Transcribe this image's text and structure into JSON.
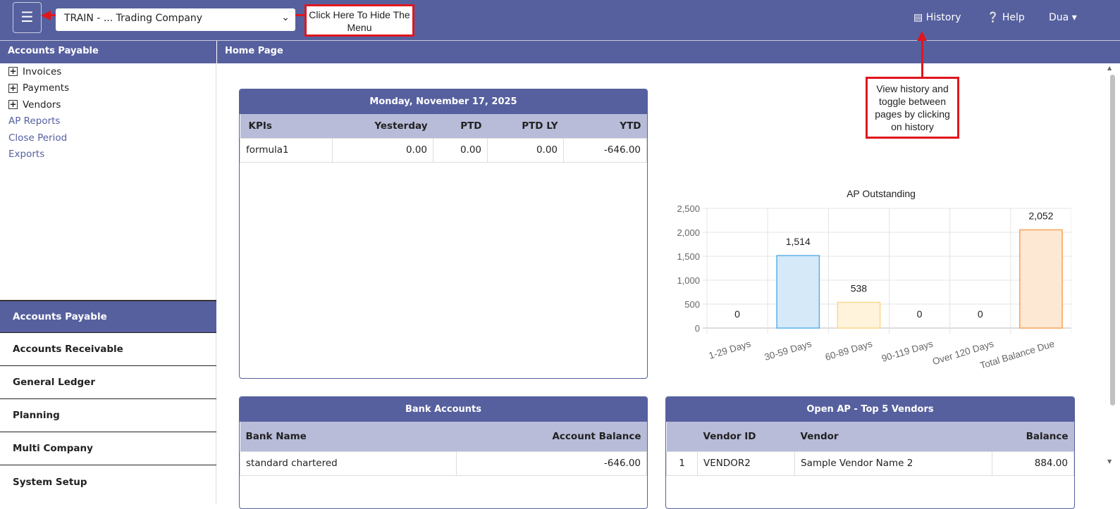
{
  "header": {
    "menu_icon": "hamburger-icon",
    "company": "TRAIN - ... Trading Company",
    "history": "History",
    "help": "Help",
    "user": "Dua"
  },
  "callouts": {
    "menu": "Click Here To Hide The Menu",
    "history": "View history and toggle between pages by clicking on history"
  },
  "sidebar": {
    "title": "Accounts Payable",
    "tree": [
      {
        "label": "Invoices"
      },
      {
        "label": "Payments"
      },
      {
        "label": "Vendors"
      }
    ],
    "links": [
      "AP Reports",
      "Close Period",
      "Exports"
    ],
    "modules": [
      "Accounts Payable",
      "Accounts Receivable",
      "General Ledger",
      "Planning",
      "Multi Company",
      "System Setup"
    ]
  },
  "page_title": "Home Page",
  "kpi": {
    "date": "Monday, November 17, 2025",
    "headers": [
      "KPIs",
      "Yesterday",
      "PTD",
      "PTD LY",
      "YTD"
    ],
    "rows": [
      [
        "formula1",
        "0.00",
        "0.00",
        "0.00",
        "-646.00"
      ]
    ]
  },
  "bank": {
    "title": "Bank Accounts",
    "headers": [
      "Bank Name",
      "Account Balance"
    ],
    "rows": [
      [
        "standard chartered",
        "-646.00"
      ]
    ]
  },
  "vendors": {
    "title": "Open AP - Top 5 Vendors",
    "headers": [
      "",
      "Vendor ID",
      "Vendor",
      "Balance"
    ],
    "rows": [
      [
        "1",
        "VENDOR2",
        "Sample Vendor Name 2",
        "884.00"
      ]
    ]
  },
  "chart_data": {
    "type": "bar",
    "title": "AP Outstanding",
    "categories": [
      "1-29 Days",
      "30-59 Days",
      "60-89 Days",
      "90-119 Days",
      "Over 120 Days",
      "Total Balance Due"
    ],
    "values": [
      0,
      1514,
      538,
      0,
      0,
      2052
    ],
    "labels": [
      "0",
      "1,514",
      "538",
      "0",
      "0",
      "2,052"
    ],
    "ylim": [
      0,
      2500
    ],
    "yticks": [
      "0",
      "500",
      "1,000",
      "1,500",
      "2,000",
      "2,500"
    ],
    "grid": true,
    "fills": [
      "#d6e9f8",
      "#d6e9f8",
      "#fff3dc",
      "#fff",
      "#fff",
      "#fde8d3"
    ],
    "strokes": [
      "#5ab0ee",
      "#5ab0ee",
      "#fcd98a",
      "#ccc",
      "#ccc",
      "#f5a25a"
    ]
  }
}
